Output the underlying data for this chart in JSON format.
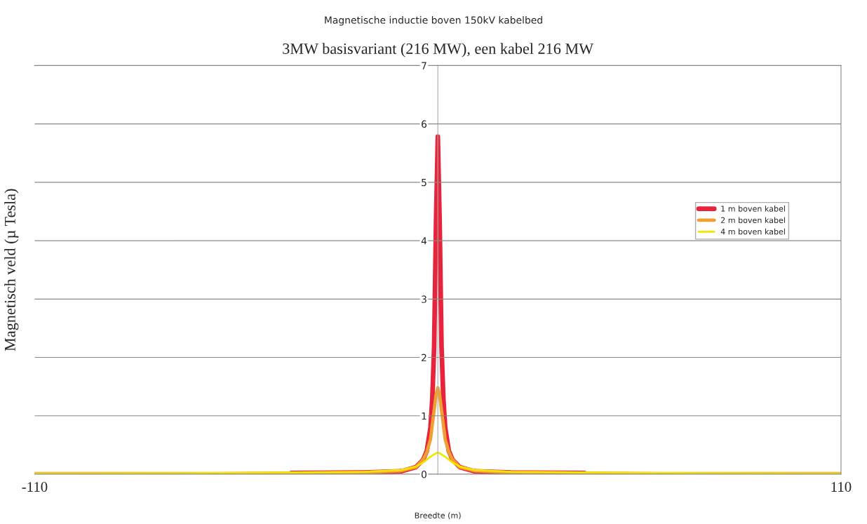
{
  "chart_data": {
    "type": "line",
    "subtitle": "Magnetische inductie boven 150kV kabelbed",
    "title": "3MW basisvariant (216 MW), een kabel 216 MW",
    "xlabel": "Breedte (m)",
    "ylabel": "Magnetisch veld (µ Tesla)",
    "x": [
      -110,
      -60,
      -40,
      -20,
      -10,
      -6,
      -4,
      -3,
      -2,
      -1.5,
      -1,
      -0.5,
      0,
      0.5,
      1,
      1.5,
      2,
      3,
      4,
      6,
      10,
      20,
      40,
      60,
      110
    ],
    "series": [
      {
        "name": "1 m boven kabel",
        "color": "#e8233c",
        "values": [
          null,
          null,
          0.02,
          0.03,
          0.05,
          0.12,
          0.25,
          0.4,
          0.8,
          1.3,
          2.2,
          4.3,
          5.78,
          4.3,
          2.2,
          1.3,
          0.8,
          0.4,
          0.25,
          0.12,
          0.05,
          0.03,
          0.02,
          null,
          null
        ]
      },
      {
        "name": "2 m boven kabel",
        "color": "#f0a030",
        "values": [
          0.01,
          0.01,
          0.02,
          0.03,
          0.06,
          0.12,
          0.25,
          0.38,
          0.6,
          0.85,
          1.1,
          1.35,
          1.48,
          1.35,
          1.1,
          0.85,
          0.6,
          0.38,
          0.25,
          0.12,
          0.06,
          0.03,
          0.02,
          0.01,
          0.01
        ]
      },
      {
        "name": "4 m boven kabel",
        "color": "#f5e600",
        "values": [
          0.01,
          0.02,
          0.03,
          0.04,
          0.07,
          0.13,
          0.2,
          0.25,
          0.3,
          0.32,
          0.34,
          0.36,
          0.37,
          0.36,
          0.34,
          0.32,
          0.3,
          0.25,
          0.2,
          0.13,
          0.07,
          0.04,
          0.03,
          0.02,
          0.01
        ]
      }
    ],
    "xlim": [
      -110,
      110
    ],
    "ylim": [
      0,
      7
    ],
    "xticks": [
      -110,
      110
    ],
    "yticks": [
      0,
      1,
      2,
      3,
      4,
      5,
      6,
      7
    ],
    "grid": "y",
    "legend": "right",
    "marker": "none",
    "line_style": "solid"
  }
}
